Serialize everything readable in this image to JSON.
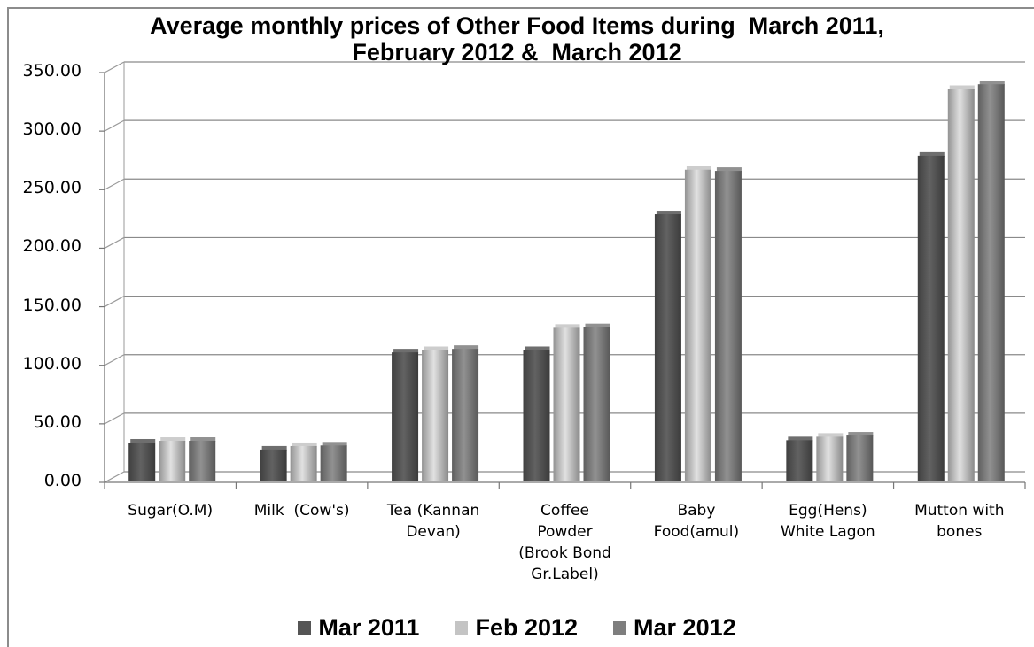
{
  "chart_data": {
    "type": "bar",
    "title_lines": [
      "Average monthly prices of Other Food Items during  March 2011,",
      "February 2012 &  March 2012"
    ],
    "xlabel": "",
    "ylabel": "",
    "ylim": [
      0,
      350
    ],
    "yticks": [
      "0.00",
      "50.00",
      "100.00",
      "150.00",
      "200.00",
      "250.00",
      "300.00",
      "350.00"
    ],
    "grid": true,
    "legend_position": "bottom",
    "categories": [
      [
        "Sugar(O.M)"
      ],
      [
        "Milk  (Cow's)"
      ],
      [
        "Tea (Kannan",
        "Devan)"
      ],
      [
        "Coffee",
        "Powder",
        "(Brook Bond",
        "Gr.Label)"
      ],
      [
        "Baby",
        "Food(amul)"
      ],
      [
        "Egg(Hens)",
        "White Lagon"
      ],
      [
        "Mutton with",
        "bones"
      ]
    ],
    "series": [
      {
        "name": "Mar 2011",
        "color": "#555555",
        "values": [
          31,
          25,
          108,
          110,
          226,
          33,
          276
        ]
      },
      {
        "name": "Feb 2012",
        "color": "#c4c4c4",
        "values": [
          32.5,
          28,
          110,
          129,
          264,
          36,
          333
        ]
      },
      {
        "name": "Mar 2012",
        "color": "#7e7e7e",
        "values": [
          32.5,
          28.5,
          111,
          129.5,
          263,
          37,
          337
        ]
      }
    ]
  }
}
